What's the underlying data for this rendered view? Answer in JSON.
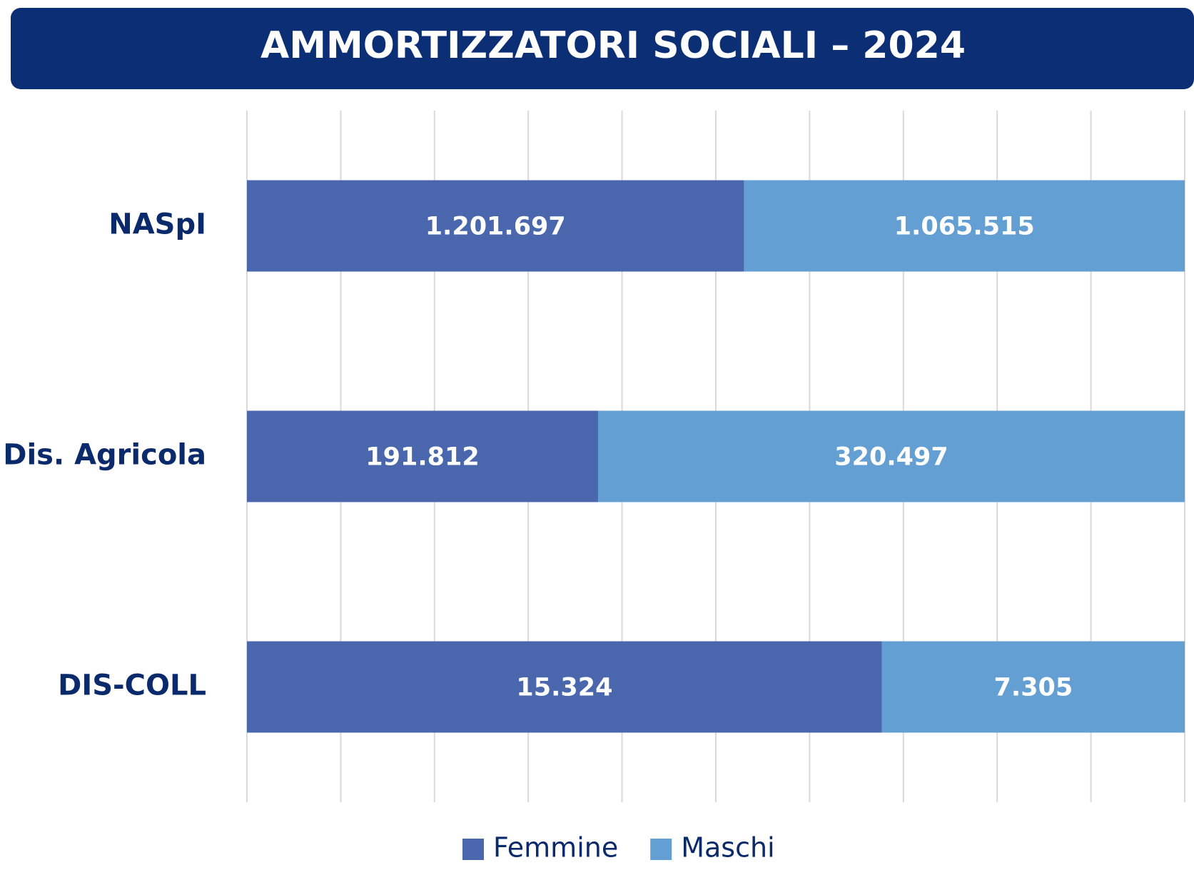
{
  "chart_data": {
    "type": "stacked-bar-percent",
    "orientation": "horizontal",
    "title": "AMMORTIZZATORI SOCIALI – 2024",
    "categories": [
      "NASpI",
      "Dis. Agricola",
      "DIS-COLL"
    ],
    "series": [
      {
        "name": "Femmine",
        "color": "#4a67ad",
        "values": [
          1201697,
          191812,
          15324
        ],
        "value_labels": [
          "1.201.697",
          "191.812",
          "15.324"
        ]
      },
      {
        "name": "Maschi",
        "color": "#639fd3",
        "values": [
          1065515,
          320497,
          7305
        ],
        "value_labels": [
          "1.065.515",
          "320.497",
          "7.305"
        ]
      }
    ],
    "xlim": [
      0,
      100
    ],
    "xticks": [
      0,
      10,
      20,
      30,
      40,
      50,
      60,
      70,
      80,
      90,
      100
    ],
    "tick_labels": false,
    "grid": true,
    "legend": "bottom"
  }
}
